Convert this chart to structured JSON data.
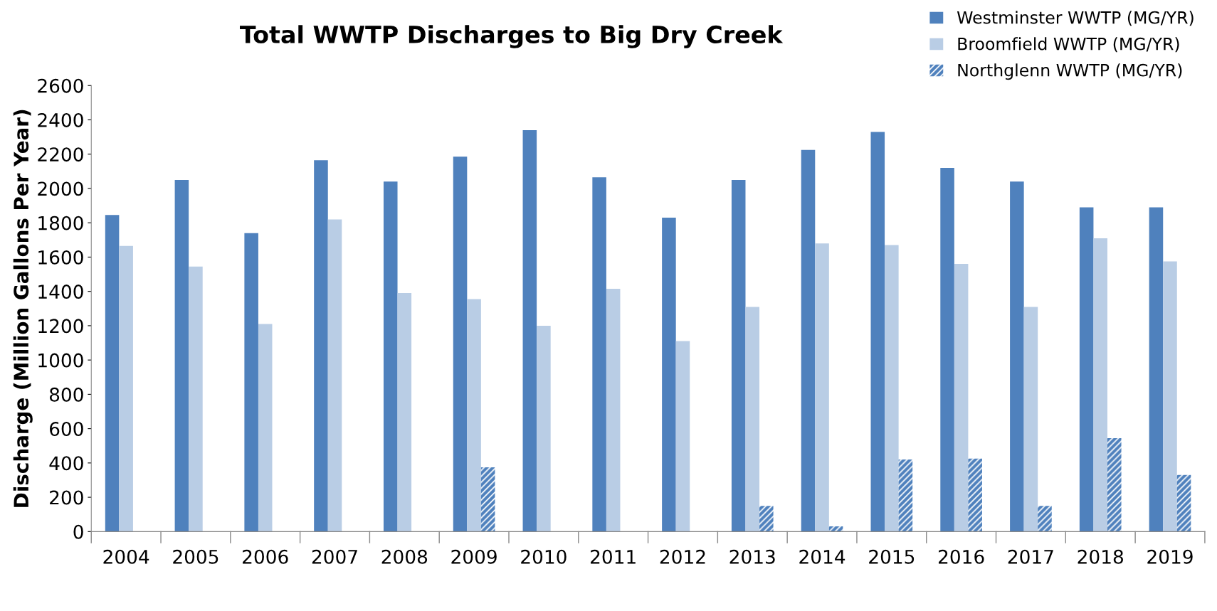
{
  "chart_data": {
    "type": "bar",
    "title": "Total WWTP Discharges to Big Dry Creek",
    "ylabel": "Discharge (Million Gallons Per Year)",
    "categories": [
      "2004",
      "2005",
      "2006",
      "2007",
      "2008",
      "2009",
      "2010",
      "2011",
      "2012",
      "2013",
      "2014",
      "2015",
      "2016",
      "2017",
      "2018",
      "2019"
    ],
    "series": [
      {
        "name": "Westminster WWTP (MG/YR)",
        "color": "#4f81bd",
        "values": [
          1845,
          2050,
          1740,
          2165,
          2040,
          2185,
          2340,
          2065,
          1830,
          2050,
          2225,
          2330,
          2120,
          2040,
          1890,
          1890
        ]
      },
      {
        "name": "Broomfield WWTP (MG/YR)",
        "color": "#b9cde5",
        "values": [
          1665,
          1545,
          1210,
          1820,
          1390,
          1355,
          1200,
          1415,
          1110,
          1310,
          1680,
          1670,
          1560,
          1310,
          1710,
          1575
        ]
      },
      {
        "name": "Northglenn WWTP (MG/YR)",
        "color": "#4f81bd",
        "values": [
          null,
          null,
          null,
          null,
          null,
          375,
          null,
          null,
          null,
          150,
          30,
          420,
          425,
          150,
          545,
          330
        ]
      }
    ],
    "ylim": [
      0,
      2600
    ],
    "yticks": [
      0,
      200,
      400,
      600,
      800,
      1000,
      1200,
      1400,
      1600,
      1800,
      2000,
      2200,
      2400,
      2600
    ],
    "grid": false,
    "legend": "top right"
  }
}
